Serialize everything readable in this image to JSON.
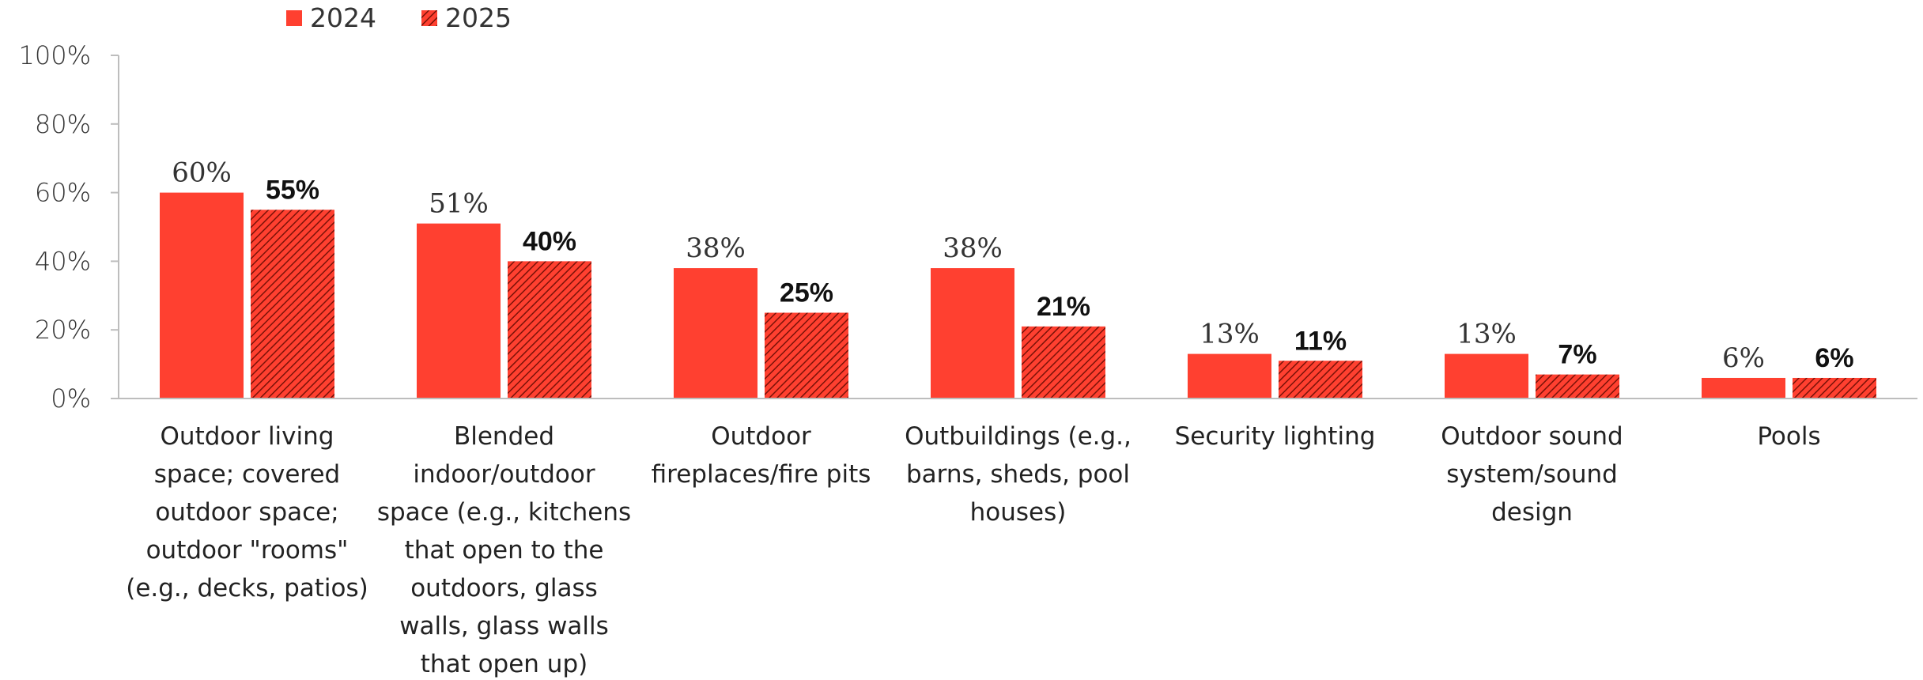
{
  "chart_data": {
    "type": "bar",
    "title": "",
    "xlabel": "",
    "ylabel": "",
    "ylim": [
      0,
      100
    ],
    "yticks": [
      "0%",
      "20%",
      "40%",
      "60%",
      "80%",
      "100%"
    ],
    "legend_position": "top-left",
    "grid": false,
    "categories": [
      [
        "Outdoor living",
        "space; covered",
        "outdoor space;",
        "outdoor \"rooms\"",
        "(e.g., decks, patios)"
      ],
      [
        "Blended",
        "indoor/outdoor",
        "space (e.g., kitchens",
        "that open to the",
        "outdoors, glass",
        "walls, glass walls",
        "that open up)"
      ],
      [
        "Outdoor",
        "fireplaces/fire pits"
      ],
      [
        "Outbuildings (e.g.,",
        "barns, sheds, pool",
        "houses)"
      ],
      [
        "Security lighting"
      ],
      [
        "Outdoor sound",
        "system/sound",
        "design"
      ],
      [
        "Pools"
      ]
    ],
    "series": [
      {
        "name": "2024",
        "values": [
          60,
          51,
          38,
          38,
          13,
          13,
          6
        ],
        "labels": [
          "60%",
          "51%",
          "38%",
          "38%",
          "13%",
          "13%",
          "6%"
        ],
        "color": "#ff4030",
        "pattern": "solid"
      },
      {
        "name": "2025",
        "values": [
          55,
          40,
          25,
          21,
          11,
          7,
          6
        ],
        "labels": [
          "55%",
          "40%",
          "25%",
          "21%",
          "11%",
          "7%",
          "6%"
        ],
        "color": "#ff4030",
        "pattern": "hatched"
      }
    ]
  }
}
